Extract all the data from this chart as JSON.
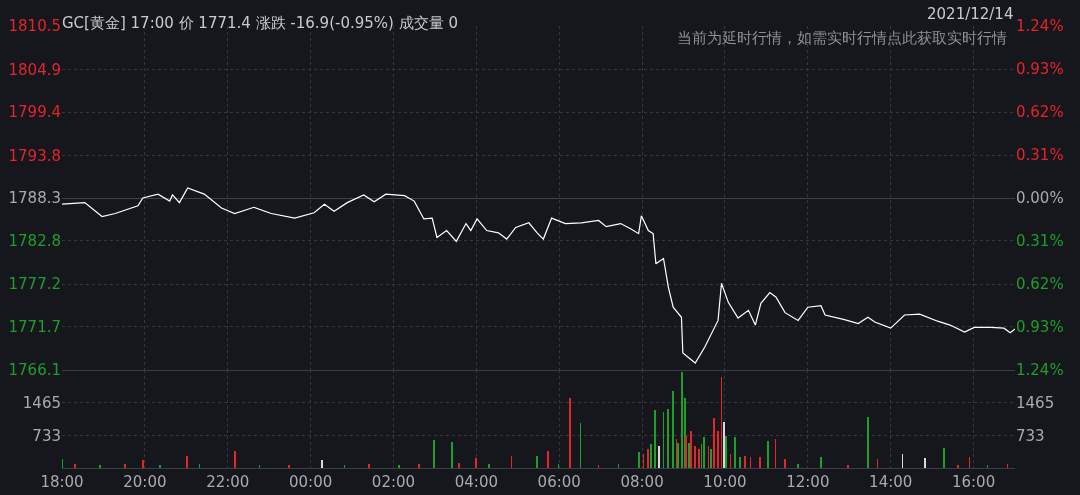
{
  "chart_data": [
    {
      "type": "line",
      "title": "GC[黄金] 17:00 价 1771.4 涨跌 -16.9(-0.95%) 成交量 0",
      "subtitle": "2021/12/14",
      "annotations": [
        "当前为延时行情，如需实时行情点此获取实时行情"
      ],
      "x": [
        "2021-12-13T18:00",
        "2021-12-13T18:33",
        "2021-12-13T18:58",
        "2021-12-13T19:17",
        "2021-12-13T19:50",
        "2021-12-13T19:57",
        "2021-12-13T20:19",
        "2021-12-13T20:36",
        "2021-12-13T20:40",
        "2021-12-13T20:50",
        "2021-12-13T21:02",
        "2021-12-13T21:26",
        "2021-12-13T21:51",
        "2021-12-13T22:10",
        "2021-12-13T22:38",
        "2021-12-13T23:03",
        "2021-12-13T23:37",
        "2021-12-14T00:05",
        "2021-12-14T00:20",
        "2021-12-14T00:34",
        "2021-12-14T00:53",
        "2021-12-14T01:17",
        "2021-12-14T01:32",
        "2021-12-14T01:49",
        "2021-12-14T02:16",
        "2021-12-14T02:30",
        "2021-12-14T02:44",
        "2021-12-14T02:56",
        "2021-12-14T03:03",
        "2021-12-14T03:17",
        "2021-12-14T03:31",
        "2021-12-14T03:45",
        "2021-12-14T03:52",
        "2021-12-14T04:01",
        "2021-12-14T04:15",
        "2021-12-14T04:32",
        "2021-12-14T04:44",
        "2021-12-14T04:57",
        "2021-12-14T05:16",
        "2021-12-14T05:28",
        "2021-12-14T05:37",
        "2021-12-14T05:49",
        "2021-12-14T06:09",
        "2021-12-14T06:32",
        "2021-12-14T06:57",
        "2021-12-14T07:08",
        "2021-12-14T07:29",
        "2021-12-14T07:44",
        "2021-12-14T07:55",
        "2021-12-14T07:59",
        "2021-12-14T08:09",
        "2021-12-14T08:16",
        "2021-12-14T08:20",
        "2021-12-14T08:31",
        "2021-12-14T08:38",
        "2021-12-14T08:45",
        "2021-12-14T08:57",
        "2021-12-14T08:59",
        "2021-12-14T09:17",
        "2021-12-14T09:31",
        "2021-12-14T09:50",
        "2021-12-14T09:55",
        "2021-12-14T10:05",
        "2021-12-14T10:19",
        "2021-12-14T10:34",
        "2021-12-14T10:44",
        "2021-12-14T10:52",
        "2021-12-14T11:05",
        "2021-12-14T11:14",
        "2021-12-14T11:27",
        "2021-12-14T11:46",
        "2021-12-14T12:00",
        "2021-12-14T12:19",
        "2021-12-14T12:25",
        "2021-12-14T12:53",
        "2021-12-14T13:13",
        "2021-12-14T13:27",
        "2021-12-14T13:37",
        "2021-12-14T14:00",
        "2021-12-14T14:20",
        "2021-12-14T14:42",
        "2021-12-14T15:08",
        "2021-12-14T15:26",
        "2021-12-14T15:47",
        "2021-12-14T16:01",
        "2021-12-14T16:25",
        "2021-12-14T16:44",
        "2021-12-14T16:53",
        "2021-12-14T17:00"
      ],
      "series": [
        {
          "color": "#ffffff",
          "values": [
            1787.5,
            1787.7,
            1785.9,
            1786.3,
            1787.3,
            1788.3,
            1788.8,
            1787.9,
            1788.7,
            1787.7,
            1789.6,
            1788.8,
            1787.0,
            1786.3,
            1787.1,
            1786.3,
            1785.7,
            1786.4,
            1787.5,
            1786.6,
            1787.7,
            1788.7,
            1787.8,
            1788.8,
            1788.6,
            1787.9,
            1785.6,
            1785.7,
            1783.2,
            1784.1,
            1782.7,
            1785.0,
            1784.1,
            1785.6,
            1784.1,
            1783.8,
            1783.0,
            1784.5,
            1785.1,
            1783.8,
            1783.0,
            1785.7,
            1785.0,
            1785.1,
            1785.4,
            1784.6,
            1785.0,
            1784.3,
            1783.7,
            1786.0,
            1784.1,
            1783.7,
            1779.8,
            1780.5,
            1776.8,
            1774.2,
            1772.9,
            1768.3,
            1767.0,
            1769.1,
            1772.5,
            1777.3,
            1774.8,
            1772.8,
            1773.8,
            1771.9,
            1774.7,
            1776.1,
            1775.5,
            1773.5,
            1772.5,
            1774.2,
            1774.4,
            1773.2,
            1772.6,
            1772.1,
            1772.9,
            1772.3,
            1771.5,
            1773.2,
            1773.3,
            1772.4,
            1771.9,
            1771.0,
            1771.6,
            1771.6,
            1771.5,
            1770.9,
            1771.4
          ]
        }
      ],
      "xlim": [
        "2021-12-13T18:00",
        "2021-12-14T17:00"
      ],
      "xticks": [
        {
          "value": "2021-12-13T18:00",
          "label": null
        },
        {
          "value": "2021-12-13T20:00",
          "label": null
        },
        {
          "value": "2021-12-13T22:00",
          "label": null
        },
        {
          "value": "2021-12-14T00:00",
          "label": null
        },
        {
          "value": "2021-12-14T02:00",
          "label": null
        },
        {
          "value": "2021-12-14T04:00",
          "label": null
        },
        {
          "value": "2021-12-14T06:00",
          "label": null
        },
        {
          "value": "2021-12-14T08:00",
          "label": null
        },
        {
          "value": "2021-12-14T10:00",
          "label": null
        },
        {
          "value": "2021-12-14T12:00",
          "label": null
        },
        {
          "value": "2021-12-14T14:00",
          "label": null
        },
        {
          "value": "2021-12-14T16:00",
          "label": null
        }
      ],
      "ylim": [
        1766.1,
        1810.5
      ],
      "yticks": [
        1766.1,
        1771.7,
        1777.2,
        1782.8,
        1788.3,
        1793.8,
        1799.4,
        1804.9,
        1810.5
      ],
      "y2lim": [
        -1.24,
        1.24
      ],
      "y2ticks": [
        {
          "value": -1.24,
          "label": "1.24%"
        },
        {
          "value": -0.93,
          "label": "0.93%"
        },
        {
          "value": -0.62,
          "label": "0.62%"
        },
        {
          "value": -0.31,
          "label": "0.31%"
        },
        {
          "value": 0,
          "label": "0.00%"
        },
        {
          "value": 0.31,
          "label": "0.31%"
        },
        {
          "value": 0.62,
          "label": "0.62%"
        },
        {
          "value": 0.93,
          "label": "0.93%"
        },
        {
          "value": 1.24,
          "label": "1.24%"
        }
      ],
      "grid": true,
      "tick_labels": "y"
    },
    {
      "type": "bar",
      "x": [
        "2021-12-13T18:00",
        "2021-12-13T18:19",
        "2021-12-13T18:55",
        "2021-12-13T19:31",
        "2021-12-13T19:57",
        "2021-12-13T20:22",
        "2021-12-13T21:01",
        "2021-12-13T21:19",
        "2021-12-13T22:10",
        "2021-12-13T22:46",
        "2021-12-13T23:29",
        "2021-12-14T00:16",
        "2021-12-14T00:49",
        "2021-12-14T01:25",
        "2021-12-14T02:08",
        "2021-12-14T02:37",
        "2021-12-14T02:59",
        "2021-12-14T03:25",
        "2021-12-14T03:35",
        "2021-12-14T03:59",
        "2021-12-14T04:18",
        "2021-12-14T04:51",
        "2021-12-14T05:28",
        "2021-12-14T05:44",
        "2021-12-14T05:59",
        "2021-12-14T06:16",
        "2021-12-14T06:31",
        "2021-12-14T06:57",
        "2021-12-14T07:26",
        "2021-12-14T07:55",
        "2021-12-14T08:02",
        "2021-12-14T08:09",
        "2021-12-14T08:13",
        "2021-12-14T08:19",
        "2021-12-14T08:25",
        "2021-12-14T08:31",
        "2021-12-14T08:38",
        "2021-12-14T08:45",
        "2021-12-14T08:50",
        "2021-12-14T08:52",
        "2021-12-14T08:58",
        "2021-12-14T09:02",
        "2021-12-14T09:04",
        "2021-12-14T09:08",
        "2021-12-14T09:11",
        "2021-12-14T09:17",
        "2021-12-14T09:22",
        "2021-12-14T09:26",
        "2021-12-14T09:30",
        "2021-12-14T09:36",
        "2021-12-14T09:40",
        "2021-12-14T09:44",
        "2021-12-14T09:50",
        "2021-12-14T09:55",
        "2021-12-14T09:59",
        "2021-12-14T10:02",
        "2021-12-14T10:08",
        "2021-12-14T10:15",
        "2021-12-14T10:22",
        "2021-12-14T10:29",
        "2021-12-14T10:37",
        "2021-12-14T10:51",
        "2021-12-14T11:02",
        "2021-12-14T11:13",
        "2021-12-14T11:27",
        "2021-12-14T11:46",
        "2021-12-14T12:19",
        "2021-12-14T12:58",
        "2021-12-14T13:27",
        "2021-12-14T13:41",
        "2021-12-14T14:17",
        "2021-12-14T14:50",
        "2021-12-14T15:17",
        "2021-12-14T15:37",
        "2021-12-14T15:54",
        "2021-12-14T16:20",
        "2021-12-14T16:49"
      ],
      "values": [
        200,
        80,
        60,
        90,
        180,
        70,
        270,
        80,
        380,
        60,
        70,
        180,
        60,
        80,
        70,
        100,
        620,
        580,
        120,
        220,
        90,
        270,
        270,
        380,
        80,
        1580,
        1000,
        70,
        90,
        360,
        310,
        420,
        530,
        1310,
        490,
        1260,
        1330,
        1730,
        640,
        560,
        2150,
        1580,
        710,
        560,
        820,
        490,
        420,
        530,
        690,
        490,
        420,
        1130,
        820,
        2040,
        1040,
        710,
        310,
        690,
        240,
        270,
        240,
        240,
        600,
        640,
        200,
        80,
        240,
        70,
        1150,
        200,
        310,
        220,
        440,
        60,
        240,
        70,
        80
      ],
      "colors": [
        "#1e9e2a",
        "#e5242b",
        "#1e9e2a",
        "#e5242b",
        "#e5242b",
        "#1e9e2a",
        "#e5242b",
        "#1e9e2a",
        "#e5242b",
        "#1e9e2a",
        "#e5242b",
        "#d9d9d9",
        "#1e9e2a",
        "#e5242b",
        "#1e9e2a",
        "#e5242b",
        "#1e9e2a",
        "#1e9e2a",
        "#e5242b",
        "#e5242b",
        "#1e9e2a",
        "#e5242b",
        "#1e9e2a",
        "#e5242b",
        "#1e9e2a",
        "#e5242b",
        "#1e9e2a",
        "#e5242b",
        "#1e9e2a",
        "#1e9e2a",
        "#e5242b",
        "#e5242b",
        "#1e9e2a",
        "#1e9e2a",
        "#d9d9d9",
        "#1e9e2a",
        "#1e9e2a",
        "#1e9e2a",
        "#e5242b",
        "#1e9e2a",
        "#1e9e2a",
        "#1e9e2a",
        "#e5242b",
        "#1e9e2a",
        "#e5242b",
        "#e5242b",
        "#e5242b",
        "#1e9e2a",
        "#1e9e2a",
        "#e5242b",
        "#1e9e2a",
        "#e5242b",
        "#e5242b",
        "#e5242b",
        "#d9d9d9",
        "#1e9e2a",
        "#e5242b",
        "#1e9e2a",
        "#1e9e2a",
        "#e5242b",
        "#e5242b",
        "#e5242b",
        "#1e9e2a",
        "#e5242b",
        "#e5242b",
        "#1e9e2a",
        "#1e9e2a",
        "#e5242b",
        "#1e9e2a",
        "#e5242b",
        "#d9d9d9",
        "#d9d9d9",
        "#1e9e2a",
        "#e5242b",
        "#e5242b",
        "#1e9e2a",
        "#e5242b"
      ],
      "xlim": [
        "2021-12-13T18:00",
        "2021-12-14T17:00"
      ],
      "xticks": [
        {
          "value": "2021-12-13T18:00",
          "label": "18:00"
        },
        {
          "value": "2021-12-13T20:00",
          "label": "20:00"
        },
        {
          "value": "2021-12-13T22:00",
          "label": "22:00"
        },
        {
          "value": "2021-12-14T00:00",
          "label": "00:00"
        },
        {
          "value": "2021-12-14T02:00",
          "label": "02:00"
        },
        {
          "value": "2021-12-14T04:00",
          "label": "04:00"
        },
        {
          "value": "2021-12-14T06:00",
          "label": "06:00"
        },
        {
          "value": "2021-12-14T08:00",
          "label": "08:00"
        },
        {
          "value": "2021-12-14T10:00",
          "label": "10:00"
        },
        {
          "value": "2021-12-14T12:00",
          "label": "12:00"
        },
        {
          "value": "2021-12-14T14:00",
          "label": "14:00"
        },
        {
          "value": "2021-12-14T16:00",
          "label": "16:00"
        }
      ],
      "ylim": [
        0,
        2200
      ],
      "yticks": [
        733,
        1465
      ],
      "y2lim": [
        0,
        2200
      ],
      "y2ticks": [
        733,
        1465
      ],
      "grid": true
    }
  ]
}
